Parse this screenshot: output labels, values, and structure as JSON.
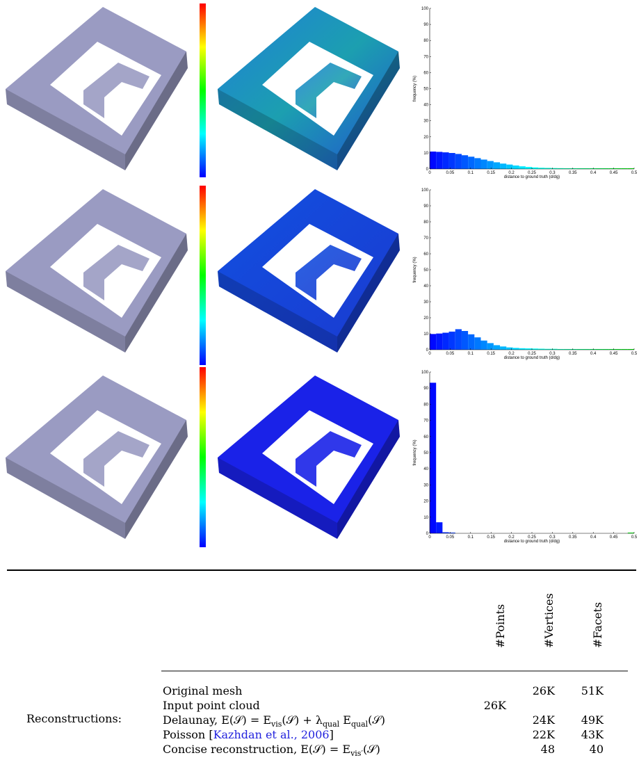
{
  "figure": {
    "charts": [
      {
        "type": "histogram",
        "ylabel": "frequency (%)",
        "xlabel": "distance to ground truth (d/dg)",
        "bins": [
          0,
          0.015625,
          0.03125,
          0.046875,
          0.0625,
          0.078125,
          0.09375,
          0.109375,
          0.125,
          0.140625,
          0.15625,
          0.171875,
          0.1875,
          0.203125,
          0.21875,
          0.234375,
          0.25,
          0.265625,
          0.28125,
          0.296875,
          0.3125,
          0.328125,
          0.34375,
          0.359375,
          0.375,
          0.390625,
          0.40625,
          0.421875,
          0.4375,
          0.453125,
          0.46875,
          0.484375,
          0.5
        ],
        "values": [
          10.5,
          10.3,
          10,
          9.6,
          9,
          8.2,
          7.3,
          6.4,
          5.5,
          4.6,
          3.8,
          3,
          2.4,
          1.8,
          1.3,
          0.9,
          0.6,
          0.4,
          0.3,
          0.2,
          0.15,
          0.1,
          0.1,
          0.1,
          0.1,
          0.1,
          0.1,
          0.1,
          0.1,
          0.1,
          0.1,
          0.1
        ],
        "colormap": [
          "#0000ff",
          "#00ffff",
          "#00ff00"
        ],
        "xlim": [
          0,
          0.5
        ],
        "ylim": [
          0,
          100
        ],
        "xticks": [
          0,
          0.05,
          0.1,
          0.15,
          0.2,
          0.25,
          0.3,
          0.35,
          0.4,
          0.45,
          0.5
        ],
        "yticks": [
          0,
          10,
          20,
          30,
          40,
          50,
          60,
          70,
          80,
          90,
          100
        ]
      },
      {
        "type": "histogram",
        "ylabel": "frequency (%)",
        "xlabel": "distance to ground truth (d/dg)",
        "bins": [
          0,
          0.015625,
          0.03125,
          0.046875,
          0.0625,
          0.078125,
          0.09375,
          0.109375,
          0.125,
          0.140625,
          0.15625,
          0.171875,
          0.1875,
          0.203125,
          0.21875,
          0.234375,
          0.25,
          0.265625,
          0.28125,
          0.296875,
          0.3125,
          0.328125,
          0.34375,
          0.359375,
          0.375,
          0.390625,
          0.40625,
          0.421875,
          0.4375,
          0.453125,
          0.46875,
          0.484375,
          0.5
        ],
        "values": [
          9.5,
          9.8,
          10.3,
          11,
          12.5,
          11.4,
          9.3,
          7.4,
          5.4,
          3.8,
          2.5,
          1.7,
          1.1,
          0.8,
          0.6,
          0.5,
          0.4,
          0.3,
          0.2,
          0.2,
          0.1,
          0.1,
          0.1,
          0.1,
          0.1,
          0.1,
          0.1,
          0.1,
          0.1,
          0.1,
          0.1,
          0.1
        ],
        "colormap": [
          "#0000ff",
          "#00ffff",
          "#00ff00"
        ],
        "xlim": [
          0,
          0.5
        ],
        "ylim": [
          0,
          100
        ],
        "xticks": [
          0,
          0.05,
          0.1,
          0.15,
          0.2,
          0.25,
          0.3,
          0.35,
          0.4,
          0.45,
          0.5
        ],
        "yticks": [
          0,
          10,
          20,
          30,
          40,
          50,
          60,
          70,
          80,
          90,
          100
        ]
      },
      {
        "type": "histogram",
        "ylabel": "frequency (%)",
        "xlabel": "distance to ground truth (d/dg)",
        "bins": [
          0,
          0.015625,
          0.03125,
          0.046875,
          0.0625,
          0.078125,
          0.09375,
          0.109375,
          0.125,
          0.140625,
          0.15625,
          0.171875,
          0.1875,
          0.203125,
          0.21875,
          0.234375,
          0.25,
          0.265625,
          0.28125,
          0.296875,
          0.3125,
          0.328125,
          0.34375,
          0.359375,
          0.375,
          0.390625,
          0.40625,
          0.421875,
          0.4375,
          0.453125,
          0.46875,
          0.484375,
          0.5
        ],
        "values": [
          93,
          6.5,
          0.3,
          0.1,
          0,
          0,
          0,
          0,
          0,
          0,
          0,
          0,
          0,
          0,
          0,
          0,
          0,
          0,
          0,
          0,
          0,
          0,
          0,
          0,
          0,
          0,
          0,
          0,
          0,
          0,
          0,
          0.1
        ],
        "colormap": [
          "#0000ff",
          "#00ffff",
          "#00ff00"
        ],
        "xlim": [
          0,
          0.5
        ],
        "ylim": [
          0,
          100
        ],
        "xticks": [
          0,
          0.05,
          0.1,
          0.15,
          0.2,
          0.25,
          0.3,
          0.35,
          0.4,
          0.45,
          0.5
        ],
        "yticks": [
          0,
          10,
          20,
          30,
          40,
          50,
          60,
          70,
          80,
          90,
          100
        ]
      }
    ]
  },
  "table": {
    "header": [
      "#Points",
      "#Vertices",
      "#Facets"
    ],
    "group_label": "Reconstructions:",
    "rows": [
      {
        "label": [
          "Original mesh"
        ],
        "points": "",
        "vertices": "26K",
        "facets": "51K"
      },
      {
        "label": [
          "Input point cloud"
        ],
        "points": "26K"
      },
      {
        "label": [
          "Delaunay, E(𝒮) = E",
          "vis",
          "(𝒮) + λ",
          "qual",
          " E",
          "qual",
          "(𝒮)"
        ],
        "vertices": "24K",
        "facets": "49K"
      },
      {
        "label": [
          "Poisson ["
        ],
        "cite": "Kazhdan et al., 2006",
        "label_end": "]",
        "vertices": "22K",
        "facets": "43K"
      },
      {
        "label": [
          "Concise reconstruction, E(𝒮) = E",
          "vis′",
          "(𝒮)"
        ],
        "vertices": "48",
        "facets": "40"
      }
    ]
  }
}
